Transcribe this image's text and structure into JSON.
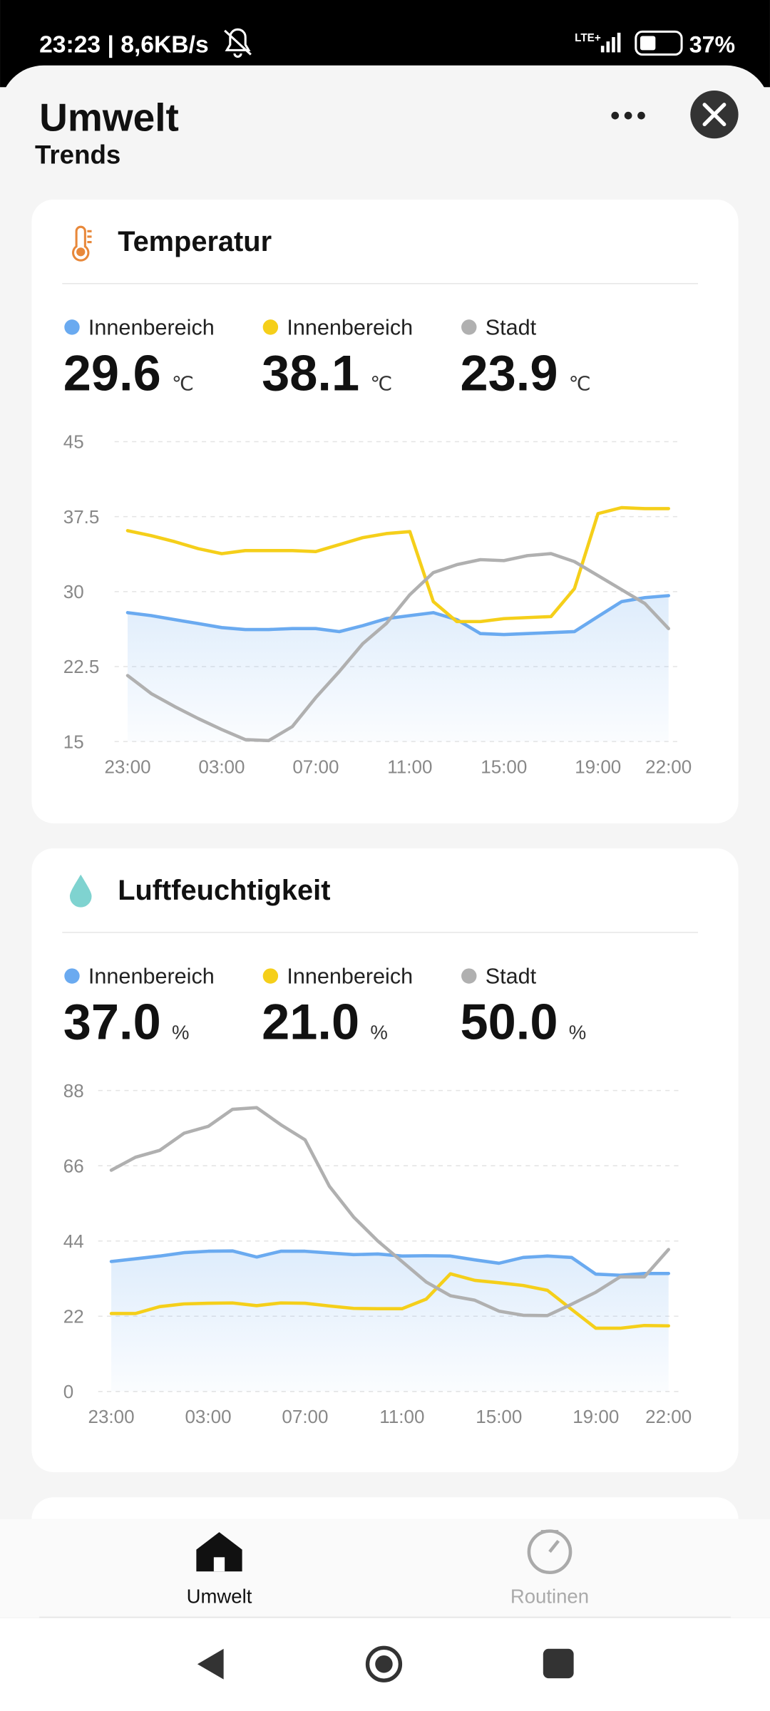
{
  "status_bar": {
    "time": "23:23 | 8,6KB/s",
    "network": "LTE+",
    "battery": "37%"
  },
  "header": {
    "title": "Umwelt",
    "section": "Trends"
  },
  "chart_data": [
    {
      "type": "line",
      "title": "Temperatur",
      "unit": "℃",
      "readouts": [
        "29.6",
        "38.1",
        "23.9"
      ],
      "categories": [
        "23:00",
        null,
        null,
        null,
        "03:00",
        null,
        null,
        null,
        "07:00",
        null,
        null,
        null,
        "11:00",
        null,
        null,
        null,
        "15:00",
        null,
        null,
        null,
        "19:00",
        null,
        null,
        "22:00"
      ],
      "series": [
        {
          "name": "Innenbereich",
          "color": "#6aaaf0",
          "area": true,
          "values": [
            27.9,
            27.6,
            27.2,
            26.8,
            26.4,
            26.2,
            26.2,
            26.3,
            26.3,
            26.0,
            26.6,
            27.3,
            27.6,
            27.9,
            27.2,
            25.8,
            25.7,
            25.8,
            25.9,
            26.0,
            27.5,
            29.0,
            29.4,
            29.6
          ]
        },
        {
          "name": "Innenbereich",
          "color": "#f5cf1a",
          "values": [
            36.1,
            35.6,
            35.0,
            34.3,
            33.8,
            34.1,
            34.1,
            34.1,
            34.0,
            34.7,
            35.4,
            35.8,
            36.0,
            29.0,
            27.0,
            27.0,
            27.3,
            27.4,
            27.5,
            30.3,
            37.8,
            38.4,
            38.3,
            38.3
          ]
        },
        {
          "name": "Stadt",
          "color": "#b0b0b0",
          "values": [
            21.6,
            19.8,
            18.5,
            17.3,
            16.2,
            15.2,
            15.1,
            16.5,
            19.4,
            22.0,
            24.8,
            26.8,
            29.7,
            31.9,
            32.7,
            33.2,
            33.1,
            33.6,
            33.8,
            33.0,
            31.6,
            30.2,
            28.8,
            26.3
          ]
        }
      ],
      "ylim": [
        15,
        45
      ],
      "yticks": [
        15,
        22.5,
        30,
        37.5,
        45
      ],
      "grid": true
    },
    {
      "type": "line",
      "title": "Luftfeuchtigkeit",
      "unit": "%",
      "readouts": [
        "37.0",
        "21.0",
        "50.0"
      ],
      "categories": [
        "23:00",
        null,
        null,
        null,
        "03:00",
        null,
        null,
        null,
        "07:00",
        null,
        null,
        null,
        "11:00",
        null,
        null,
        null,
        "15:00",
        null,
        null,
        null,
        "19:00",
        null,
        null,
        "22:00"
      ],
      "series": [
        {
          "name": "Innenbereich",
          "color": "#6aaaf0",
          "area": true,
          "values": [
            38.0,
            38.8,
            39.6,
            40.6,
            41.0,
            41.1,
            39.3,
            41.0,
            41.0,
            40.5,
            40.0,
            40.2,
            39.6,
            39.7,
            39.6,
            38.5,
            37.5,
            39.2,
            39.6,
            39.2,
            34.3,
            34.0,
            34.5,
            34.5
          ]
        },
        {
          "name": "Innenbereich",
          "color": "#f5cf1a",
          "values": [
            22.8,
            22.8,
            24.8,
            25.6,
            25.8,
            25.9,
            25.1,
            25.9,
            25.8,
            25.0,
            24.3,
            24.2,
            24.2,
            27.0,
            34.4,
            32.5,
            31.8,
            31.0,
            29.6,
            24.0,
            18.5,
            18.5,
            19.3,
            19.2
          ]
        },
        {
          "name": "Stadt",
          "color": "#b0b0b0",
          "values": [
            64.7,
            68.5,
            70.5,
            75.5,
            77.5,
            82.5,
            83.0,
            78.0,
            73.6,
            60.0,
            51.0,
            44.0,
            38.0,
            32.0,
            28.0,
            26.7,
            23.5,
            22.3,
            22.2,
            25.5,
            29.0,
            33.5,
            33.5,
            41.5
          ]
        }
      ],
      "ylim": [
        0,
        88
      ],
      "yticks": [
        0,
        22,
        44,
        66,
        88
      ],
      "grid": true
    }
  ],
  "nav": {
    "items": [
      "Umwelt",
      "Routinen"
    ],
    "active": 0
  }
}
